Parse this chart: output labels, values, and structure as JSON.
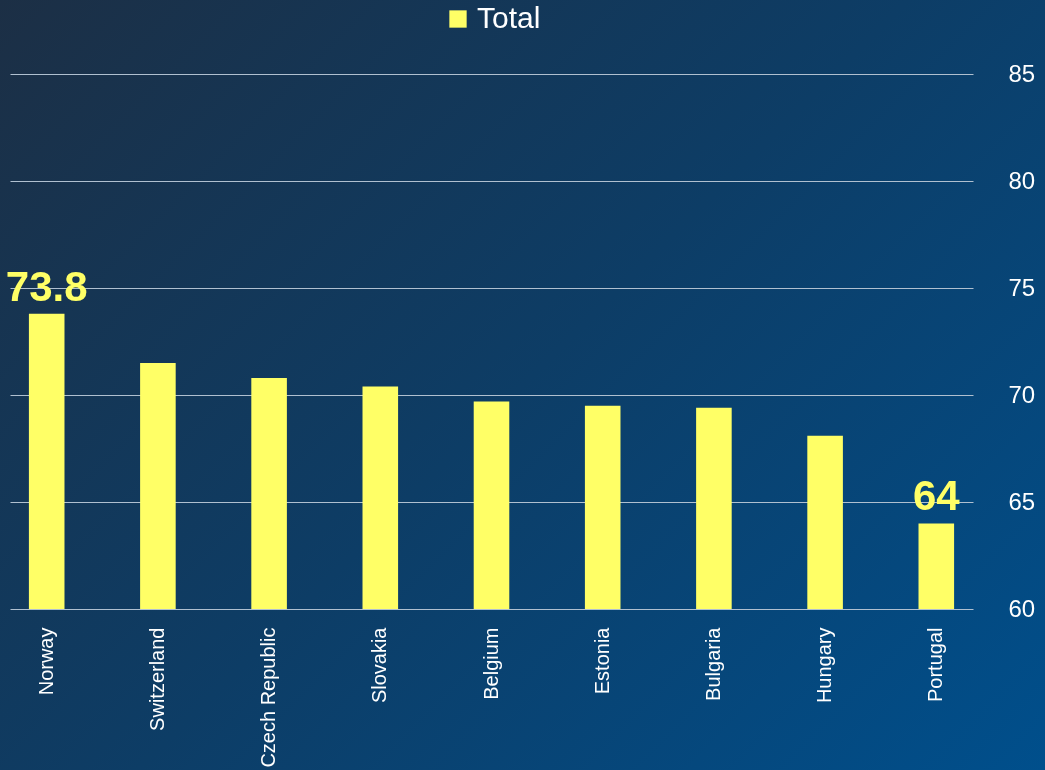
{
  "chart_data": {
    "type": "bar",
    "categories": [
      "Norway",
      "Switzerland",
      "Czech Republic",
      "Slovakia",
      "Belgium",
      "Estonia",
      "Bulgaria",
      "Hungary",
      "Portugal"
    ],
    "series": [
      {
        "name": "Total",
        "color": "#ffff66",
        "values": [
          73.8,
          71.5,
          70.8,
          70.4,
          69.7,
          69.5,
          69.4,
          68.1,
          64
        ],
        "value_labels": [
          "73.8",
          null,
          null,
          null,
          null,
          null,
          null,
          null,
          "64"
        ]
      }
    ],
    "ylim": [
      60,
      85
    ],
    "yticks": [
      60,
      65,
      70,
      75,
      80,
      85
    ],
    "grid": "y",
    "legend": "top"
  }
}
